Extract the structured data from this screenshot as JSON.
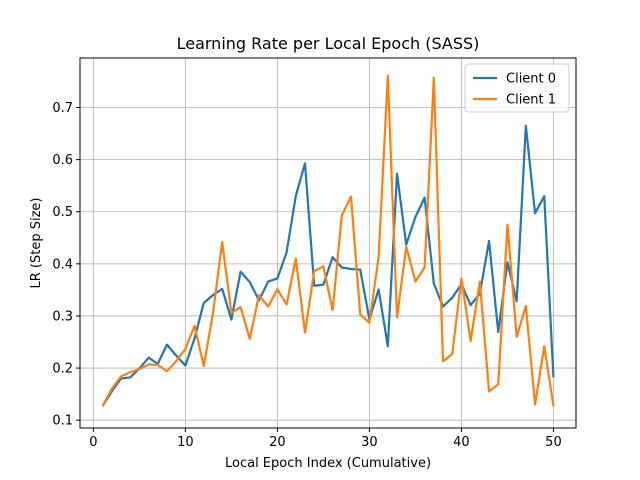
{
  "chart_data": {
    "type": "line",
    "title": "Learning Rate per Local Epoch (SASS)",
    "xlabel": "Local Epoch Index (Cumulative)",
    "ylabel": "LR (Step Size)",
    "xlim": [
      -1.45,
      52.45
    ],
    "ylim": [
      0.085,
      0.795
    ],
    "xticks": [
      0,
      10,
      20,
      30,
      40,
      50
    ],
    "yticks": [
      0.1,
      0.2,
      0.3,
      0.4,
      0.5,
      0.6,
      0.7
    ],
    "xtick_labels": [
      "0",
      "10",
      "20",
      "30",
      "40",
      "50"
    ],
    "ytick_labels": [
      "0.1",
      "0.2",
      "0.3",
      "0.4",
      "0.5",
      "0.6",
      "0.7"
    ],
    "grid": true,
    "legend_position": "top-right",
    "x": [
      1,
      2,
      3,
      4,
      5,
      6,
      7,
      8,
      9,
      10,
      11,
      12,
      13,
      14,
      15,
      16,
      17,
      18,
      19,
      20,
      21,
      22,
      23,
      24,
      25,
      26,
      27,
      28,
      29,
      30,
      31,
      32,
      33,
      34,
      35,
      36,
      37,
      38,
      39,
      40,
      41,
      42,
      43,
      44,
      45,
      46,
      47,
      48,
      49,
      50
    ],
    "series": [
      {
        "name": "Client 0",
        "color": "#1f77b4",
        "values": [
          0.127,
          0.155,
          0.18,
          0.182,
          0.199,
          0.22,
          0.208,
          0.245,
          0.224,
          0.205,
          0.257,
          0.325,
          0.34,
          0.352,
          0.293,
          0.385,
          0.365,
          0.33,
          0.366,
          0.372,
          0.422,
          0.53,
          0.593,
          0.358,
          0.36,
          0.413,
          0.393,
          0.39,
          0.389,
          0.293,
          0.351,
          0.242,
          0.573,
          0.437,
          0.49,
          0.527,
          0.362,
          0.318,
          0.335,
          0.361,
          0.321,
          0.343,
          0.444,
          0.269,
          0.403,
          0.328,
          0.665,
          0.497,
          0.53,
          0.182
        ]
      },
      {
        "name": "Client 1",
        "color": "#ff7f0e",
        "values": [
          0.127,
          0.16,
          0.184,
          0.192,
          0.198,
          0.207,
          0.206,
          0.194,
          0.213,
          0.237,
          0.281,
          0.204,
          0.305,
          0.442,
          0.306,
          0.317,
          0.256,
          0.34,
          0.318,
          0.351,
          0.322,
          0.41,
          0.268,
          0.386,
          0.395,
          0.311,
          0.493,
          0.529,
          0.303,
          0.287,
          0.413,
          0.761,
          0.297,
          0.433,
          0.366,
          0.393,
          0.757,
          0.213,
          0.227,
          0.372,
          0.252,
          0.366,
          0.155,
          0.169,
          0.475,
          0.26,
          0.319,
          0.13,
          0.242,
          0.127
        ]
      }
    ]
  }
}
